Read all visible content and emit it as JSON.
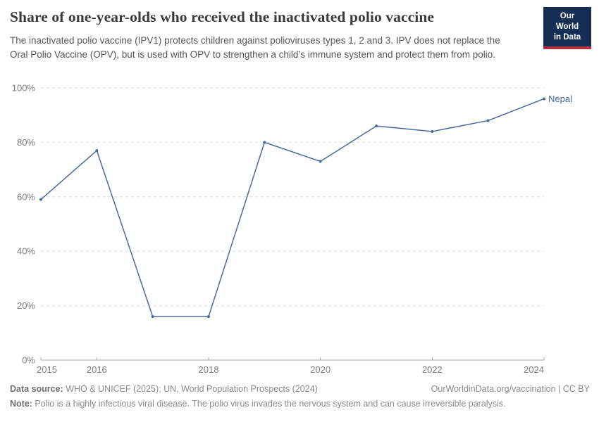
{
  "header": {
    "title": "Share of one-year-olds who received the inactivated polio vaccine",
    "subtitle": "The inactivated polio vaccine (IPV1) protects children against polioviruses types 1, 2 and 3. IPV does not replace the Oral Polio Vaccine (OPV), but is used with OPV to strengthen a child’s immune system and protect them from polio.",
    "logo": {
      "line1": "Our World",
      "line2": "in Data",
      "bg_color": "#152e54",
      "accent_color": "#b0333f"
    }
  },
  "chart_data": {
    "type": "line",
    "title": "Share of one-year-olds who received the inactivated polio vaccine",
    "xlabel": "",
    "ylabel": "",
    "xlim": [
      2015,
      2024
    ],
    "ylim": [
      0,
      100
    ],
    "grid": "horizontal-dashed",
    "legend_position": "end-of-line-label",
    "series": [
      {
        "name": "Nepal",
        "color": "#4C6A9C",
        "x": [
          2015,
          2016,
          2017,
          2018,
          2019,
          2020,
          2021,
          2022,
          2023,
          2024
        ],
        "values": [
          59,
          77,
          16,
          16,
          80,
          73,
          86,
          84,
          88,
          96
        ]
      }
    ],
    "x_tick_values": [
      2015,
      2016,
      2018,
      2020,
      2022,
      2024
    ],
    "x_tick_labels": [
      "2015",
      "2016",
      "2018",
      "2020",
      "2022",
      "2024"
    ],
    "y_tick_values": [
      0,
      20,
      40,
      60,
      80,
      100
    ],
    "y_tick_labels": [
      "0%",
      "20%",
      "40%",
      "60%",
      "80%",
      "100%"
    ]
  },
  "footer": {
    "datasource_label": "Data source:",
    "datasource_text": " WHO & UNICEF (2025); UN, World Population Prospects (2024)",
    "rights": "OurWorldinData.org/vaccination | CC BY",
    "note_label": "Note:",
    "note_text": " Polio is a highly infectious viral disease. The polio virus invades the nervous system and can cause irreversible paralysis."
  }
}
